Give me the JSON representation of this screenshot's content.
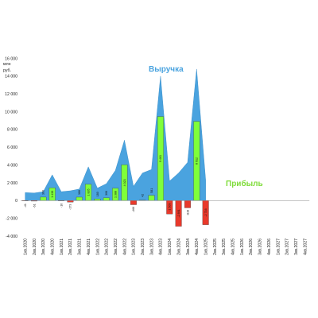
{
  "chart_data": {
    "type": "bar",
    "unit_label": [
      "млн",
      "руб."
    ],
    "ylim": [
      -4000,
      16000
    ],
    "yticks": [
      -4000,
      -2000,
      0,
      2000,
      4000,
      6000,
      8000,
      10000,
      12000,
      14000,
      16000
    ],
    "ytick_labels": [
      "-4 000",
      "-2 000",
      "0",
      "2 000",
      "4 000",
      "6 000",
      "8 000",
      "10 000",
      "12 000",
      "14 000",
      "16 000"
    ],
    "categories": [
      "1кв.2020",
      "2кв.2020",
      "3кв.2020",
      "4кв.2020",
      "1кв.2021",
      "2кв.2021",
      "3кв.2021",
      "4кв.2021",
      "1кв.2022",
      "2кв.2022",
      "3кв.2022",
      "4кв.2022",
      "1кв.2023",
      "2кв.2023",
      "3кв.2023",
      "4кв.2023",
      "1кв.2024",
      "2кв.2024",
      "3кв.2024",
      "4кв.2024",
      "1кв.2025",
      "2кв.2025",
      "3кв.2025",
      "4кв.2025",
      "1кв.2026",
      "2кв.2026",
      "3кв.2026",
      "4кв.2026",
      "1кв.2027",
      "2кв.2027",
      "3кв.2027",
      "4кв.2027"
    ],
    "series": [
      {
        "name": "Выручка",
        "type": "area",
        "color": "#4aa3df",
        "values": [
          900,
          850,
          1000,
          2900,
          1000,
          1100,
          1300,
          3800,
          1400,
          1900,
          3400,
          6800,
          1600,
          3100,
          3500,
          14000,
          2200,
          3100,
          4300,
          14800,
          2300,
          null,
          null,
          null,
          null,
          null,
          null,
          null,
          null,
          null,
          null,
          null
        ]
      },
      {
        "name": "Прибыль",
        "type": "bar",
        "positive_color": "#7fff3a",
        "negative_color": "#e8392b",
        "values": [
          -41,
          -61,
          390,
          1439,
          -10,
          -173,
          386,
          1835,
          180,
          306,
          1388,
          4023,
          -466,
          42,
          581,
          9461,
          -1509,
          -2891,
          -819,
          8912,
          -2716,
          null,
          null,
          null,
          null,
          null,
          null,
          null,
          null,
          null,
          null,
          null
        ],
        "labels": [
          "-41",
          "-61",
          "390",
          "1 439",
          "-10",
          "-173",
          "386",
          "1 835",
          "180",
          "306",
          "1 388",
          "4 023",
          "-466",
          "42",
          "581",
          "9 461",
          "-1 509",
          "-2 891",
          "-819",
          "8 912",
          "-2 716",
          "",
          "",
          "",
          "",
          "",
          "",
          "",
          "",
          "",
          "",
          ""
        ]
      }
    ],
    "legend": [
      {
        "text": "Выручка",
        "color": "#4aa3df",
        "placement": "top-center"
      },
      {
        "text": "Прибыль",
        "color": "#7fdc3a",
        "placement": "right-center"
      }
    ],
    "grid": false
  }
}
